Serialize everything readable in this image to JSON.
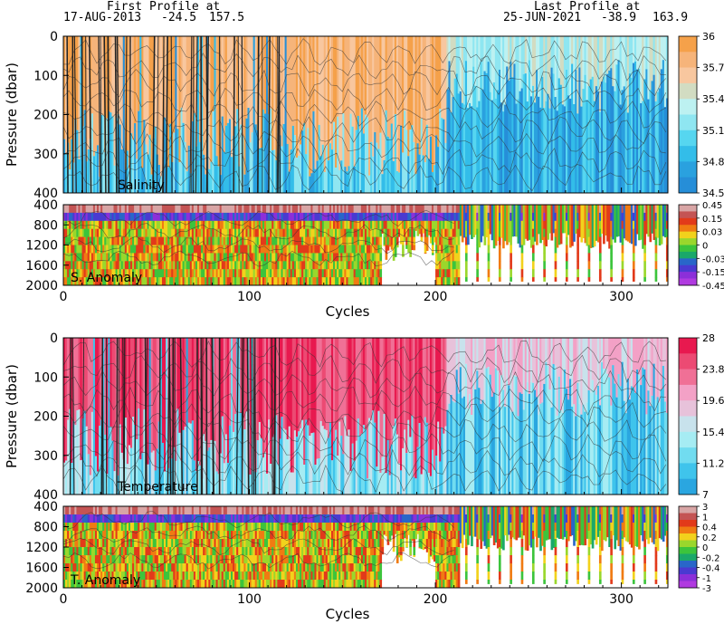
{
  "header": {
    "first_label": "First Profile at",
    "first_date": "17-AUG-2013",
    "first_lat": "-24.5",
    "first_lon": "157.5",
    "last_label": "Last Profile at",
    "last_date": "25-JUN-2021",
    "last_lat": "-38.9",
    "last_lon": "163.9"
  },
  "chart_data": [
    {
      "type": "heatmap",
      "title": "Salinity",
      "xlabel": "",
      "ylabel": "Pressure (dbar)",
      "yticks": [
        "0",
        "100",
        "200",
        "300",
        "400"
      ],
      "ylim": [
        0,
        400
      ],
      "xlim": [
        0,
        325
      ],
      "colorbar": {
        "labels": [
          "36",
          "35.7",
          "35.4",
          "35.1",
          "34.8",
          "34.5"
        ],
        "colors": [
          "#f5a14a",
          "#f6b47a",
          "#f8c79f",
          "#d2dcc2",
          "#bdf1f1",
          "#8fe6f1",
          "#56d6f0",
          "#33bde9",
          "#2aa1df",
          "#268ed8"
        ]
      }
    },
    {
      "type": "heatmap",
      "title": "S. Anomaly",
      "xlabel": "Cycles",
      "ylabel": "",
      "yticks": [
        "400",
        "800",
        "1200",
        "1600",
        "2000"
      ],
      "ylim": [
        400,
        2000
      ],
      "xticks": [
        "0",
        "100",
        "200",
        "300"
      ],
      "xlim": [
        0,
        325
      ],
      "colorbar": {
        "labels": [
          "0.45",
          "0.15",
          "0.03",
          "0",
          "-0.03",
          "-0.15",
          "-0.45"
        ],
        "colors": [
          "#d8a5a5",
          "#c45454",
          "#e23a1a",
          "#f07b12",
          "#f2d21c",
          "#9ad72c",
          "#3cc43c",
          "#1aa86a",
          "#2966c9",
          "#4a3ad1",
          "#8c2fd9",
          "#b03ae0"
        ]
      }
    },
    {
      "type": "heatmap",
      "title": "Temperature",
      "xlabel": "",
      "ylabel": "Pressure (dbar)",
      "yticks": [
        "0",
        "100",
        "200",
        "300",
        "400"
      ],
      "ylim": [
        0,
        400
      ],
      "xlim": [
        0,
        325
      ],
      "colorbar": {
        "labels": [
          "28",
          "23.8",
          "19.6",
          "15.4",
          "11.2",
          "7"
        ],
        "colors": [
          "#e8194f",
          "#ec4a73",
          "#f07096",
          "#f3a1c6",
          "#e7c2da",
          "#c8e2ec",
          "#a6ecf3",
          "#71dcf0",
          "#3fc4ec",
          "#2aa6e0"
        ]
      }
    },
    {
      "type": "heatmap",
      "title": "T. Anomaly",
      "xlabel": "Cycles",
      "ylabel": "",
      "yticks": [
        "400",
        "800",
        "1200",
        "1600",
        "2000"
      ],
      "ylim": [
        400,
        2000
      ],
      "xticks": [
        "0",
        "100",
        "200",
        "300"
      ],
      "xlim": [
        0,
        325
      ],
      "colorbar": {
        "labels": [
          "3",
          "1",
          "0.4",
          "0.2",
          "0",
          "-0.2",
          "-0.4",
          "-1",
          "-3"
        ],
        "colors": [
          "#d8a5a5",
          "#c45454",
          "#e23a1a",
          "#f07b12",
          "#f2d21c",
          "#9ad72c",
          "#3cc43c",
          "#1aa86a",
          "#2966c9",
          "#4a3ad1",
          "#8c2fd9",
          "#b03ae0"
        ]
      }
    }
  ]
}
